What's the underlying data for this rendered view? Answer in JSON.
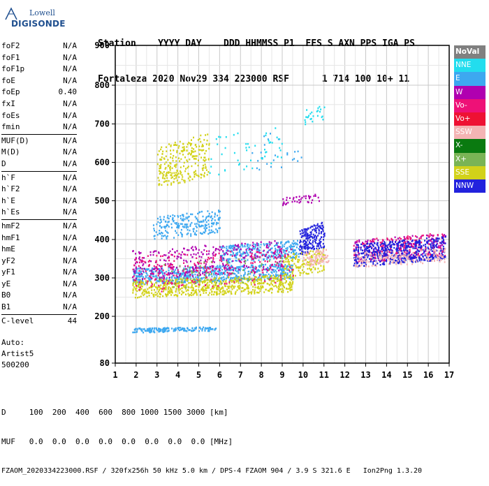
{
  "logo": {
    "line1": "Lowell",
    "line2": "DIGISONDE"
  },
  "header": {
    "row1": "Station    YYYY DAY    DDD HHMMSS P1  FFS S AXN PPS IGA PS",
    "row2": "Fortaleza 2020 Nov29 334 223000 RSF      1 714 100 10+ 11"
  },
  "params_groups": [
    [
      [
        "foF2",
        "N/A"
      ],
      [
        "foF1",
        "N/A"
      ],
      [
        "foF1p",
        "N/A"
      ],
      [
        "foE",
        "N/A"
      ],
      [
        "foEp",
        "0.40"
      ],
      [
        "fxI",
        "N/A"
      ],
      [
        "foEs",
        "N/A"
      ],
      [
        "fmin",
        "N/A"
      ]
    ],
    [
      [
        "MUF(D)",
        "N/A"
      ],
      [
        "M(D)",
        "N/A"
      ],
      [
        "D",
        "N/A"
      ]
    ],
    [
      [
        "h`F",
        "N/A"
      ],
      [
        "h`F2",
        "N/A"
      ],
      [
        "h`E",
        "N/A"
      ],
      [
        "h`Es",
        "N/A"
      ]
    ],
    [
      [
        "hmF2",
        "N/A"
      ],
      [
        "hmF1",
        "N/A"
      ],
      [
        "hmE",
        "N/A"
      ],
      [
        "yF2",
        "N/A"
      ],
      [
        "yF1",
        "N/A"
      ],
      [
        "yE",
        "N/A"
      ],
      [
        "B0",
        "N/A"
      ],
      [
        "B1",
        "N/A"
      ]
    ],
    [
      [
        "C-level",
        "44"
      ]
    ]
  ],
  "auto": {
    "line1": "Auto:",
    "line2": "Artist5",
    "line3": "500200"
  },
  "legend": [
    {
      "label": "NoVal",
      "color": "#808080"
    },
    {
      "label": "NNE",
      "color": "#22ddee"
    },
    {
      "label": "E",
      "color": "#3da8f0"
    },
    {
      "label": "W",
      "color": "#b000b0"
    },
    {
      "label": "Vo-",
      "color": "#ee1177"
    },
    {
      "label": "Vo+",
      "color": "#ee1133"
    },
    {
      "label": "SSW",
      "color": "#f4b4b4"
    },
    {
      "label": "X-",
      "color": "#0a7a10"
    },
    {
      "label": "X+",
      "color": "#7ab455"
    },
    {
      "label": "SSE",
      "color": "#d2d21a"
    },
    {
      "label": "NNW",
      "color": "#2222dd"
    }
  ],
  "footer": {
    "d_line": "D     100  200  400  600  800 1000 1500 3000 [km]",
    "muf_line": "MUF   0.0  0.0  0.0  0.0  0.0  0.0  0.0  0.0 [MHz]",
    "info_line": "FZAOM_2020334223000.RSF / 320fx256h 50 kHz 5.0 km / DPS-4 FZAOM 904 / 3.9 S 321.6 E   Ion2Png 1.3.20"
  },
  "chart_data": {
    "type": "scatter",
    "x_ticks": [
      "1",
      "2",
      "3",
      "4",
      "5",
      "6",
      "7",
      "8",
      "9",
      "10",
      "11",
      "12",
      "13",
      "14",
      "15",
      "16",
      "17"
    ],
    "y_ticks": [
      "900",
      "800",
      "700",
      "600",
      "500",
      "400",
      "300",
      "200",
      "80"
    ],
    "xlim": [
      1,
      17
    ],
    "y_tick_values": [
      900,
      800,
      700,
      600,
      500,
      400,
      300,
      200,
      80
    ],
    "grid": true,
    "legend_position": "right",
    "series": [
      {
        "name": "E",
        "color": "#3da8f0",
        "clusters": [
          {
            "x": [
              1.8,
              5.8
            ],
            "y": [
              160,
              175
            ],
            "n": 150
          },
          {
            "x": [
              2.8,
              6.0
            ],
            "y": [
              400,
              480
            ],
            "n": 220
          },
          {
            "x": [
              1.8,
              9.5
            ],
            "y": [
              285,
              340
            ],
            "n": 700
          },
          {
            "x": [
              6.0,
              9.8
            ],
            "y": [
              340,
              400
            ],
            "n": 300
          },
          {
            "x": [
              7.5,
              10.0
            ],
            "y": [
              570,
              700
            ],
            "n": 25
          }
        ]
      },
      {
        "name": "SSE",
        "color": "#d2d21a",
        "clusters": [
          {
            "x": [
              3.0,
              5.5
            ],
            "y": [
              530,
              680
            ],
            "n": 260
          },
          {
            "x": [
              1.8,
              9.5
            ],
            "y": [
              250,
              310
            ],
            "n": 650
          },
          {
            "x": [
              9.0,
              11.0
            ],
            "y": [
              300,
              380
            ],
            "n": 150
          }
        ]
      },
      {
        "name": "W",
        "color": "#b000b0",
        "clusters": [
          {
            "x": [
              1.8,
              9.0
            ],
            "y": [
              295,
              400
            ],
            "n": 320
          },
          {
            "x": [
              9.0,
              10.8
            ],
            "y": [
              490,
              520
            ],
            "n": 40
          },
          {
            "x": [
              12.4,
              16.8
            ],
            "y": [
              340,
              420
            ],
            "n": 220
          }
        ]
      },
      {
        "name": "Vo-",
        "color": "#ee1177",
        "clusters": [
          {
            "x": [
              1.8,
              9.5
            ],
            "y": [
              260,
              390
            ],
            "n": 230
          },
          {
            "x": [
              12.4,
              16.8
            ],
            "y": [
              340,
              420
            ],
            "n": 180
          }
        ]
      },
      {
        "name": "NNW",
        "color": "#2222dd",
        "clusters": [
          {
            "x": [
              9.8,
              11.0
            ],
            "y": [
              360,
              450
            ],
            "n": 180
          },
          {
            "x": [
              12.4,
              16.8
            ],
            "y": [
              330,
              410
            ],
            "n": 520
          }
        ]
      },
      {
        "name": "SSW",
        "color": "#f4b4b4",
        "clusters": [
          {
            "x": [
              10.0,
              11.2
            ],
            "y": [
              330,
              380
            ],
            "n": 80
          },
          {
            "x": [
              12.4,
              16.8
            ],
            "y": [
              330,
              380
            ],
            "n": 160
          }
        ]
      },
      {
        "name": "NNE",
        "color": "#22ddee",
        "clusters": [
          {
            "x": [
              5.5,
              9.0
            ],
            "y": [
              560,
              700
            ],
            "n": 50
          },
          {
            "x": [
              10.0,
              11.0
            ],
            "y": [
              700,
              750
            ],
            "n": 25
          }
        ]
      },
      {
        "name": "X+",
        "color": "#7ab455",
        "clusters": [
          {
            "x": [
              3.0,
              9.0
            ],
            "y": [
              270,
              360
            ],
            "n": 60
          }
        ]
      }
    ]
  }
}
